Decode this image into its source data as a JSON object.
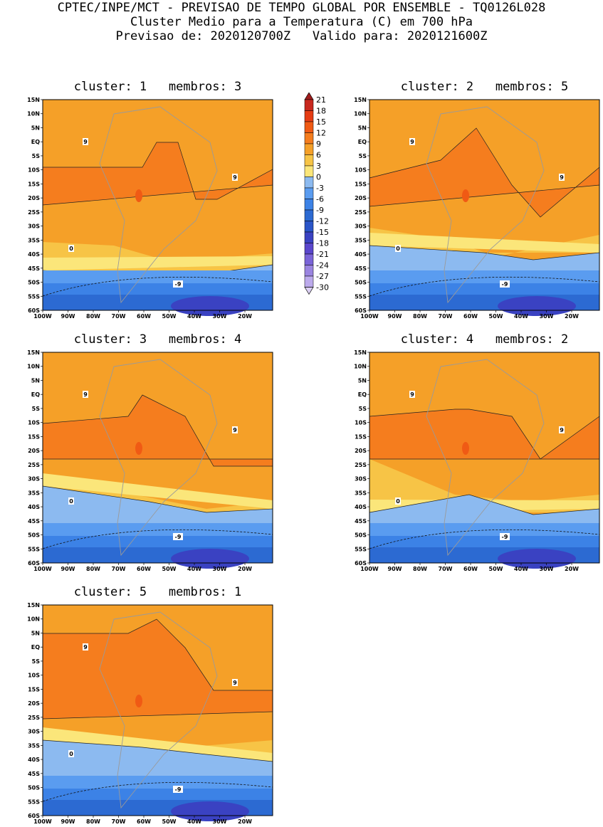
{
  "header": {
    "line1": "CPTEC/INPE/MCT - PREVISAO DE TEMPO GLOBAL POR ENSEMBLE - TQ0126L028",
    "line2": "Cluster Medio para a Temperatura (C) em 700 hPa",
    "line3": "Previsao de: 2020120700Z   Valido para: 2020121600Z"
  },
  "panels": [
    {
      "title": "cluster: 1   membros: 3"
    },
    {
      "title": "cluster: 2   membros: 5"
    },
    {
      "title": "cluster: 3   membros: 4"
    },
    {
      "title": "cluster: 4   membros: 2"
    },
    {
      "title": "cluster: 5   membros: 1"
    }
  ],
  "lat_labels": [
    "15N",
    "10N",
    "5N",
    "EQ",
    "5S",
    "10S",
    "15S",
    "20S",
    "25S",
    "30S",
    "35S",
    "40S",
    "45S",
    "50S",
    "55S",
    "60S"
  ],
  "lon_labels": [
    "100W",
    "90W",
    "80W",
    "70W",
    "60W",
    "50W",
    "40W",
    "30W",
    "20W"
  ],
  "colorbar": {
    "labels": [
      "21",
      "18",
      "15",
      "12",
      "9",
      "6",
      "3",
      "0",
      "-3",
      "-6",
      "-9",
      "-12",
      "-15",
      "-18",
      "-21",
      "-24",
      "-27",
      "-30"
    ],
    "colors": [
      "#a01c1c",
      "#c8281e",
      "#e63c14",
      "#f05a14",
      "#f57d1e",
      "#f5a028",
      "#f7c446",
      "#fbe67a",
      "#8cbaf0",
      "#5a9cf0",
      "#3c82e6",
      "#2c6ad2",
      "#2a55c8",
      "#3a42c2",
      "#5a46cc",
      "#7a64d8",
      "#9a84e0",
      "#bcaaec",
      "#dcd0f4"
    ]
  },
  "contour_labels": {
    "nine": "9",
    "zero": "0",
    "minus_nine": "-9"
  }
}
